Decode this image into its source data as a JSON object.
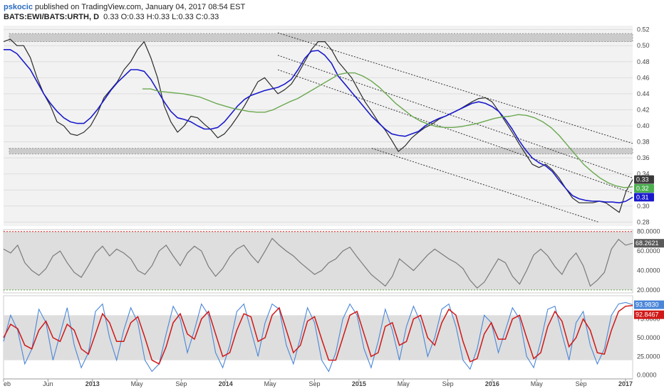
{
  "header": {
    "user": "pskocic",
    "published": "published on TradingView.com, January 04, 2017 08:54 EST",
    "symbol": "BATS:EWI/BATS:URTH, D",
    "ohlc": "0.33 O:0.33 H:0.33 L:0.33 C:0.33"
  },
  "colors": {
    "price": "#2b2b2b",
    "ma_fast": "#1a1acc",
    "ma_slow": "#6aa84f",
    "rsi": "#7a7a7a",
    "stoch_k": "#4a86d8",
    "stoch_d": "#d01818",
    "zone": "#bdbdbd",
    "ob_line": "#e02020",
    "os_line": "#6aa84f"
  },
  "chart_data": [
    {
      "type": "line",
      "panel": "price",
      "y_ticks": [
        "0.52",
        "0.50",
        "0.48",
        "0.46",
        "0.44",
        "0.42",
        "0.40",
        "0.38",
        "0.36",
        "0.34",
        "0.32",
        "0.30",
        "0.28"
      ],
      "ylim": [
        0.275,
        0.525
      ],
      "x_ticks": [
        "eb",
        "Jun",
        "2013",
        "May",
        "Sep",
        "2014",
        "May",
        "Sep",
        "2015",
        "May",
        "Sep",
        "2016",
        "May",
        "Sep",
        "2017"
      ],
      "series": [
        {
          "key": "price",
          "values": [
            0.505,
            0.508,
            0.5,
            0.5,
            0.485,
            0.46,
            0.44,
            0.425,
            0.405,
            0.4,
            0.39,
            0.388,
            0.392,
            0.4,
            0.415,
            0.435,
            0.445,
            0.455,
            0.47,
            0.48,
            0.495,
            0.505,
            0.485,
            0.46,
            0.425,
            0.405,
            0.392,
            0.4,
            0.412,
            0.41,
            0.402,
            0.395,
            0.385,
            0.39,
            0.4,
            0.412,
            0.425,
            0.44,
            0.455,
            0.46,
            0.45,
            0.44,
            0.445,
            0.452,
            0.465,
            0.48,
            0.495,
            0.505,
            0.505,
            0.495,
            0.48,
            0.47,
            0.46,
            0.445,
            0.43,
            0.418,
            0.405,
            0.395,
            0.382,
            0.368,
            0.375,
            0.385,
            0.392,
            0.398,
            0.402,
            0.408,
            0.412,
            0.416,
            0.42,
            0.425,
            0.43,
            0.434,
            0.435,
            0.43,
            0.418,
            0.405,
            0.392,
            0.378,
            0.365,
            0.352,
            0.348,
            0.352,
            0.345,
            0.335,
            0.322,
            0.31,
            0.304,
            0.304,
            0.304,
            0.306,
            0.304,
            0.298,
            0.292,
            0.318,
            0.333
          ]
        },
        {
          "key": "ma_fast",
          "values": [
            0.495,
            0.495,
            0.49,
            0.48,
            0.47,
            0.455,
            0.44,
            0.428,
            0.418,
            0.41,
            0.405,
            0.403,
            0.403,
            0.41,
            0.42,
            0.432,
            0.444,
            0.454,
            0.462,
            0.47,
            0.47,
            0.468,
            0.458,
            0.444,
            0.43,
            0.418,
            0.41,
            0.408,
            0.405,
            0.4,
            0.396,
            0.396,
            0.398,
            0.405,
            0.415,
            0.425,
            0.433,
            0.438,
            0.441,
            0.444,
            0.446,
            0.448,
            0.452,
            0.458,
            0.47,
            0.484,
            0.493,
            0.494,
            0.488,
            0.478,
            0.462,
            0.452,
            0.442,
            0.432,
            0.422,
            0.412,
            0.404,
            0.396,
            0.39,
            0.388,
            0.387,
            0.39,
            0.393,
            0.4,
            0.405,
            0.409,
            0.412,
            0.416,
            0.42,
            0.424,
            0.428,
            0.43,
            0.428,
            0.424,
            0.418,
            0.408,
            0.396,
            0.382,
            0.37,
            0.36,
            0.354,
            0.35,
            0.343,
            0.332,
            0.322,
            0.313,
            0.309,
            0.307,
            0.306,
            0.306,
            0.305,
            0.305,
            0.304,
            0.306,
            0.311
          ]
        },
        {
          "key": "ma_slow",
          "values": [
            null,
            null,
            null,
            null,
            null,
            null,
            null,
            null,
            null,
            null,
            null,
            null,
            null,
            null,
            null,
            null,
            null,
            0.446,
            0.446,
            0.443,
            0.442,
            0.441,
            0.44,
            0.438,
            0.436,
            0.432,
            0.428,
            0.425,
            0.422,
            0.42,
            0.418,
            0.417,
            0.417,
            0.42,
            0.425,
            0.43,
            0.434,
            0.44,
            0.446,
            0.452,
            0.458,
            0.464,
            0.466,
            0.466,
            0.462,
            0.456,
            0.448,
            0.438,
            0.428,
            0.42,
            0.412,
            0.406,
            0.402,
            0.399,
            0.398,
            0.398,
            0.399,
            0.401,
            0.403,
            0.406,
            0.409,
            0.411,
            0.412,
            0.414,
            0.413,
            0.41,
            0.405,
            0.398,
            0.388,
            0.376,
            0.364,
            0.352,
            0.343,
            0.335,
            0.329,
            0.325,
            0.323,
            0.324
          ]
        }
      ],
      "zones": [
        [
          0.505,
          0.515
        ],
        [
          0.365,
          0.372
        ]
      ],
      "price_badges": [
        {
          "label": "0.33",
          "value": 0.333,
          "color": "#3a3a3a"
        },
        {
          "label": "0.32",
          "value": 0.322,
          "color": "#4caf50"
        },
        {
          "label": "0.31",
          "value": 0.311,
          "color": "#1a1acc"
        }
      ]
    },
    {
      "type": "line",
      "panel": "rsi",
      "y_ticks": [
        "80.0000",
        "60.0000",
        "40.0000",
        "20.0000"
      ],
      "ylim": [
        17,
        82
      ],
      "zone": [
        20,
        80
      ],
      "series": [
        {
          "key": "rsi",
          "values": [
            62,
            58,
            66,
            48,
            40,
            35,
            42,
            55,
            60,
            48,
            38,
            33,
            45,
            58,
            65,
            55,
            62,
            58,
            52,
            40,
            36,
            45,
            60,
            66,
            55,
            45,
            58,
            65,
            60,
            44,
            34,
            42,
            54,
            62,
            66,
            56,
            48,
            60,
            73,
            66,
            60,
            55,
            48,
            42,
            36,
            40,
            48,
            52,
            60,
            64,
            54,
            45,
            36,
            30,
            24,
            34,
            52,
            46,
            40,
            48,
            56,
            62,
            57,
            52,
            48,
            42,
            30,
            22,
            28,
            40,
            52,
            48,
            34,
            26,
            40,
            56,
            62,
            55,
            44,
            36,
            50,
            58,
            45,
            24,
            30,
            38,
            62,
            72,
            66,
            68
          ]
        }
      ],
      "value_badge": {
        "label": "68.2621"
      }
    },
    {
      "type": "line",
      "panel": "stochastic",
      "y_ticks": [
        "75.0000",
        "50.0000",
        "25.0000",
        "0.0000"
      ],
      "ylim": [
        -5,
        106
      ],
      "zone": [
        20,
        80
      ],
      "series": [
        {
          "key": "stoch_k",
          "values": [
            45,
            80,
            60,
            15,
            35,
            88,
            70,
            20,
            55,
            90,
            40,
            10,
            30,
            85,
            95,
            50,
            20,
            60,
            90,
            70,
            20,
            5,
            15,
            55,
            92,
            75,
            30,
            60,
            95,
            80,
            30,
            10,
            40,
            85,
            95,
            60,
            25,
            70,
            95,
            88,
            40,
            15,
            50,
            90,
            70,
            20,
            5,
            30,
            75,
            95,
            80,
            35,
            10,
            45,
            88,
            60,
            20,
            65,
            92,
            70,
            25,
            50,
            88,
            95,
            65,
            20,
            8,
            35,
            80,
            70,
            30,
            60,
            90,
            75,
            25,
            10,
            45,
            88,
            92,
            55,
            20,
            70,
            85,
            40,
            15,
            35,
            80,
            95,
            97,
            94
          ]
        },
        {
          "key": "stoch_d",
          "values": [
            50,
            68,
            62,
            40,
            35,
            60,
            72,
            50,
            45,
            68,
            60,
            35,
            28,
            55,
            82,
            70,
            45,
            45,
            70,
            78,
            50,
            20,
            15,
            38,
            70,
            82,
            55,
            48,
            75,
            85,
            55,
            25,
            30,
            60,
            82,
            78,
            45,
            50,
            80,
            90,
            60,
            30,
            40,
            72,
            78,
            48,
            20,
            20,
            50,
            80,
            85,
            55,
            25,
            30,
            65,
            70,
            40,
            45,
            75,
            80,
            50,
            40,
            70,
            88,
            80,
            45,
            18,
            22,
            55,
            70,
            48,
            48,
            75,
            80,
            50,
            22,
            30,
            65,
            85,
            72,
            38,
            50,
            75,
            60,
            30,
            28,
            60,
            85,
            92,
            93
          ]
        }
      ],
      "k_badge": {
        "label": "93.9830"
      },
      "d_badge": {
        "label": "92.8467"
      }
    }
  ]
}
